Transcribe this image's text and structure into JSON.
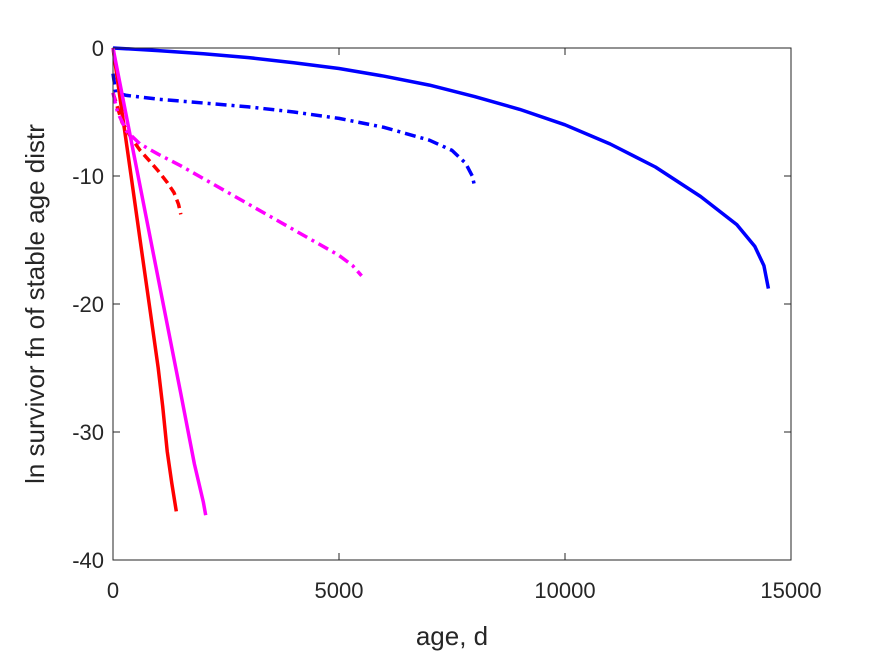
{
  "chart_data": {
    "type": "line",
    "title": "",
    "xlabel": "age, d",
    "ylabel": "ln survivor fn of stable age distr",
    "xlim": [
      0,
      15000
    ],
    "ylim": [
      -40,
      0
    ],
    "xticks": [
      0,
      5000,
      10000,
      15000
    ],
    "yticks": [
      -40,
      -30,
      -20,
      -10,
      0
    ],
    "grid": false,
    "legend": "none",
    "series": [
      {
        "color": "#0000ff",
        "style": "solid",
        "x": [
          0,
          1000,
          2000,
          3000,
          4000,
          5000,
          6000,
          7000,
          8000,
          9000,
          10000,
          11000,
          12000,
          13000,
          13800,
          14200,
          14400,
          14500
        ],
        "y": [
          0,
          -0.2,
          -0.45,
          -0.75,
          -1.15,
          -1.6,
          -2.2,
          -2.9,
          -3.8,
          -4.8,
          -6.0,
          -7.5,
          -9.3,
          -11.6,
          -13.8,
          -15.5,
          -17.0,
          -18.8
        ]
      },
      {
        "color": "#0000ff",
        "style": "dashdot",
        "x": [
          0,
          60,
          300,
          1000,
          2000,
          3000,
          4000,
          5000,
          6000,
          7000,
          7500,
          7800,
          7950,
          8000
        ],
        "y": [
          -2.0,
          -3.5,
          -3.7,
          -4.0,
          -4.3,
          -4.6,
          -5.0,
          -5.5,
          -6.2,
          -7.2,
          -8.0,
          -9.0,
          -10.0,
          -10.8
        ]
      },
      {
        "color": "#ff0000",
        "style": "solid",
        "x": [
          0,
          200,
          400,
          600,
          800,
          1000,
          1100,
          1200,
          1300,
          1400
        ],
        "y": [
          0,
          -5,
          -10,
          -15,
          -20,
          -25,
          -28,
          -31.5,
          -34,
          -36.2
        ]
      },
      {
        "color": "#ff0000",
        "style": "dashed",
        "x": [
          0,
          200,
          400,
          600,
          800,
          1000,
          1200,
          1350,
          1450,
          1500
        ],
        "y": [
          -3.5,
          -5.8,
          -7.0,
          -8.0,
          -8.8,
          -9.6,
          -10.5,
          -11.3,
          -12.2,
          -13.0
        ]
      },
      {
        "color": "#ff00ff",
        "style": "solid",
        "x": [
          0,
          500,
          1000,
          1500,
          1800,
          2000,
          2050
        ],
        "y": [
          0,
          -9,
          -18,
          -27,
          -32.5,
          -35.5,
          -36.5
        ]
      },
      {
        "color": "#ff00ff",
        "style": "dashdot",
        "x": [
          0,
          100,
          300,
          600,
          1000,
          1500,
          2000,
          2500,
          3000,
          3500,
          4000,
          4500,
          5000,
          5300,
          5500
        ],
        "y": [
          -3.5,
          -5.0,
          -6.5,
          -7.5,
          -8.3,
          -9.2,
          -10.2,
          -11.2,
          -12.2,
          -13.2,
          -14.2,
          -15.2,
          -16.2,
          -17.0,
          -17.8
        ]
      }
    ]
  }
}
